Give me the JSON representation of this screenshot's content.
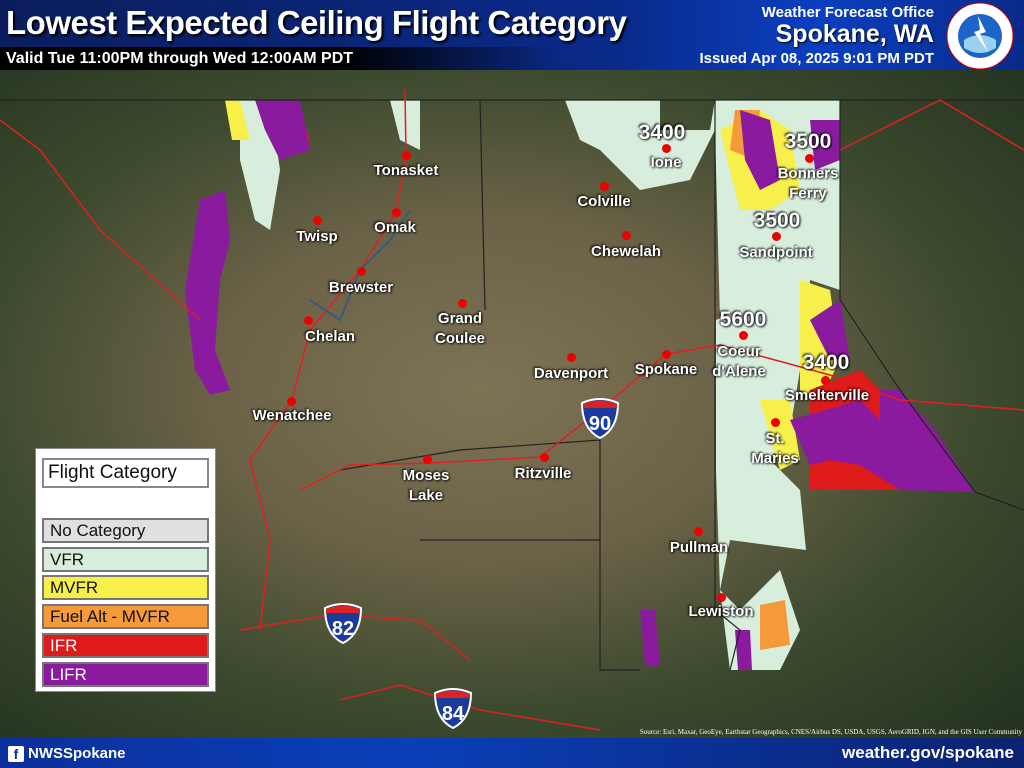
{
  "header": {
    "title": "Lowest Expected Ceiling Flight Category",
    "valid": "Valid Tue 11:00PM through Wed 12:00AM PDT",
    "wfo_label": "Weather Forecast Office",
    "office": "Spokane, WA",
    "issued": "Issued Apr 08, 2025 9:01 PM PDT",
    "logo_text": "NATIONAL WEATHER SERVICE"
  },
  "legend": {
    "title": "Flight Category",
    "items": [
      {
        "label": "No Category",
        "color": "#e0e0e0"
      },
      {
        "label": "VFR",
        "color": "#d8eedd"
      },
      {
        "label": "MVFR",
        "color": "#f8f04a"
      },
      {
        "label": "Fuel Alt - MVFR",
        "color": "#f59a3a"
      },
      {
        "label": "IFR",
        "color": "#de1a1a"
      },
      {
        "label": "LIFR",
        "color": "#8a1a9e"
      }
    ]
  },
  "cities": [
    "Tonasket",
    "Omak",
    "Twisp",
    "Brewster",
    "Chelan",
    "Wenatchee",
    "Grand\nCoulee",
    "Colville",
    "Chewelah",
    "Ione",
    "Davenport",
    "Spokane",
    "Moses\nLake",
    "Ritzville",
    "Pullman",
    "Lewiston",
    "Bonners\nFerry",
    "Sandpoint",
    "Coeur\nd'Alene",
    "Smelterville",
    "St.\nMaries"
  ],
  "ceilings": [
    "3400",
    "3500",
    "3500",
    "5600",
    "3400"
  ],
  "highways": [
    {
      "type": "INTERSTATE",
      "number": "90"
    },
    {
      "type": "INTERSTATE",
      "number": "82"
    },
    {
      "type": "INTERSTATE",
      "number": "84"
    }
  ],
  "source": "Source: Esri, Maxar, GeoEye, Earthstar Geographics, CNES/Airbus DS, USDA, USGS, AeroGRID, IGN, and the GIS User Community",
  "footer": {
    "facebook": "NWSSpokane",
    "site": "weather.gov/spokane"
  }
}
